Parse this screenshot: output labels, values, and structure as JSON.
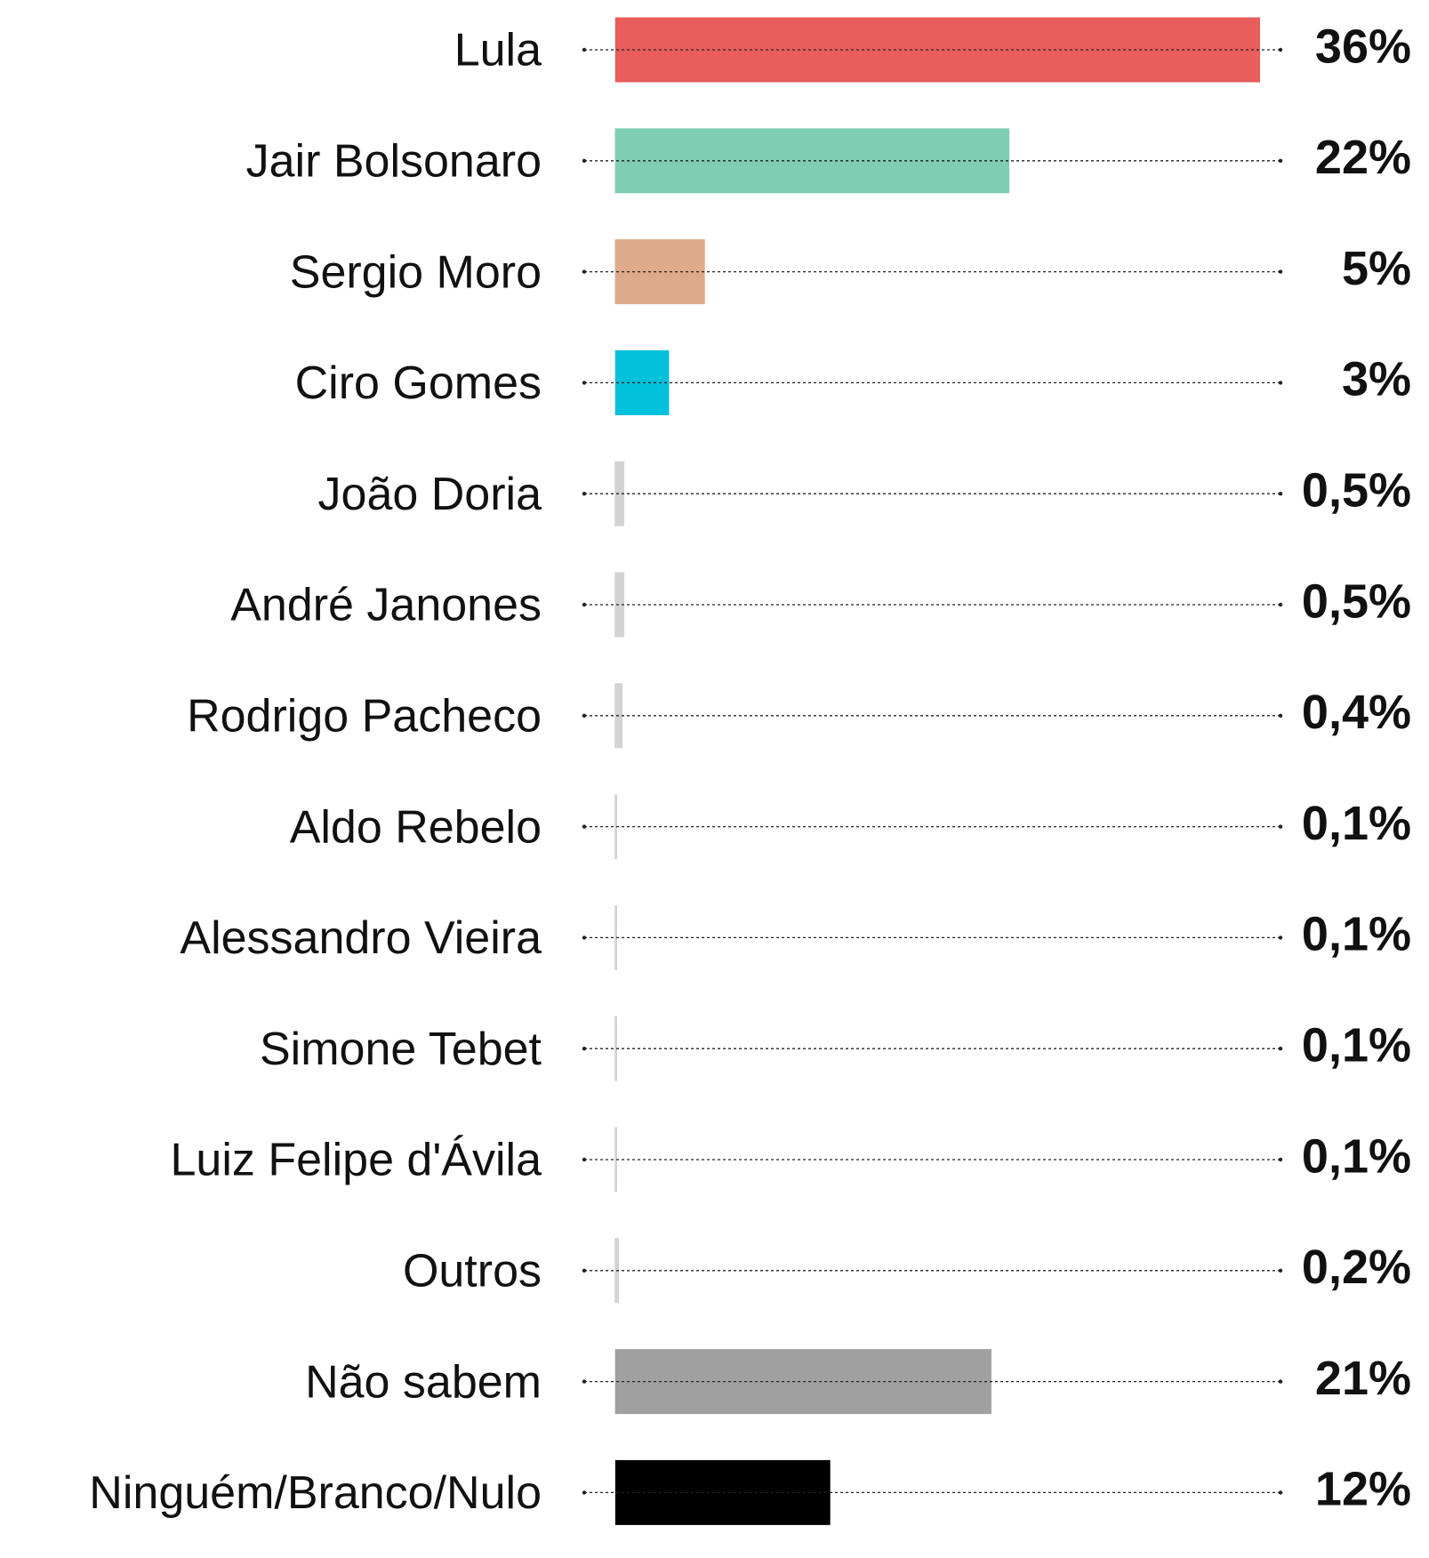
{
  "chart_data": {
    "type": "bar",
    "orientation": "horizontal",
    "categories": [
      "Lula",
      "Jair Bolsonaro",
      "Sergio Moro",
      "Ciro Gomes",
      "João Doria",
      "André Janones",
      "Rodrigo Pacheco",
      "Aldo Rebelo",
      "Alessandro Vieira",
      "Simone Tebet",
      "Luiz Felipe d'Ávila",
      "Outros",
      "Não sabem",
      "Ninguém/Branco/Nulo"
    ],
    "values": [
      36,
      22,
      5,
      3,
      0.5,
      0.5,
      0.4,
      0.1,
      0.1,
      0.1,
      0.1,
      0.2,
      21,
      12
    ],
    "value_labels": [
      "36%",
      "22%",
      "5%",
      "3%",
      "0,5%",
      "0,5%",
      "0,4%",
      "0,1%",
      "0,1%",
      "0,1%",
      "0,1%",
      "0,2%",
      "21%",
      "12%"
    ],
    "colors": [
      "#e95d5d",
      "#7fcdb3",
      "#dfaa8a",
      "#00c0da",
      "#d3d3d3",
      "#d3d3d3",
      "#d3d3d3",
      "#d3d3d3",
      "#d3d3d3",
      "#d3d3d3",
      "#d3d3d3",
      "#d3d3d3",
      "#a0a0a0",
      "#000000"
    ]
  }
}
